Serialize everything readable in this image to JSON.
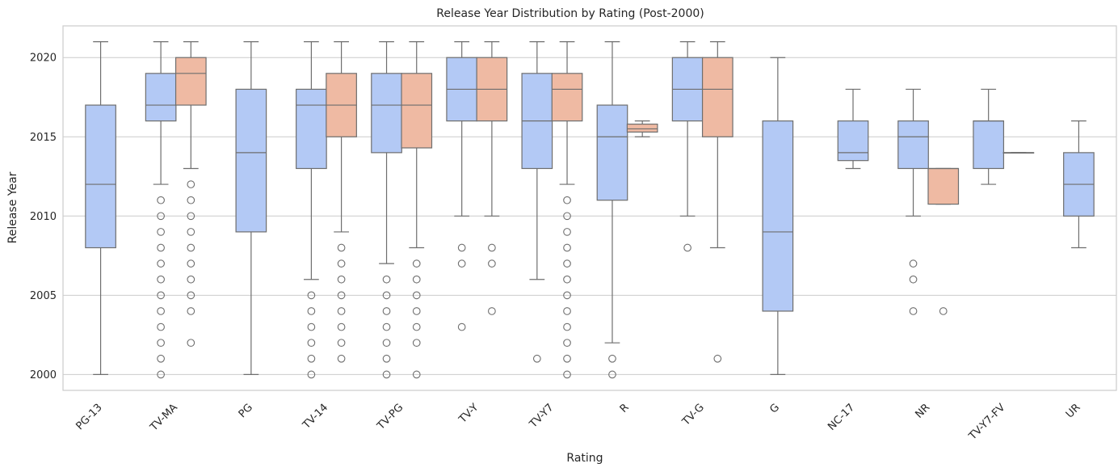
{
  "chart_data": {
    "type": "box",
    "title": "Release Year Distribution by Rating (Post-2000)",
    "xlabel": "Rating",
    "ylabel": "Release Year",
    "ylim": [
      1999,
      2022
    ],
    "yticks": [
      2000,
      2005,
      2010,
      2015,
      2020
    ],
    "grid": true,
    "colors": {
      "first_group": "#b3c9f5",
      "second_group": "#efbaa3",
      "outline": "#6e6e6e",
      "grid": "#cccccc"
    },
    "categories": [
      "PG-13",
      "TV-MA",
      "PG",
      "TV-14",
      "TV-PG",
      "TV-Y",
      "TV-Y7",
      "R",
      "TV-G",
      "G",
      "NC-17",
      "NR",
      "TV-Y7-FV",
      "UR"
    ],
    "boxes": [
      [
        {
          "q1": 2008,
          "median": 2012,
          "q3": 2017,
          "lo": 2000,
          "hi": 2021,
          "fliers": []
        }
      ],
      [
        {
          "q1": 2016,
          "median": 2017,
          "q3": 2019,
          "lo": 2012,
          "hi": 2021,
          "fliers": [
            2000,
            2001,
            2002,
            2003,
            2004,
            2005,
            2006,
            2007,
            2008,
            2009,
            2010,
            2011
          ]
        },
        {
          "q1": 2017,
          "median": 2019,
          "q3": 2020,
          "lo": 2013,
          "hi": 2021,
          "fliers": [
            2002,
            2004,
            2005,
            2006,
            2007,
            2008,
            2009,
            2010,
            2011,
            2012
          ]
        }
      ],
      [
        {
          "q1": 2009,
          "median": 2014,
          "q3": 2018,
          "lo": 2000,
          "hi": 2021,
          "fliers": []
        }
      ],
      [
        {
          "q1": 2013,
          "median": 2017,
          "q3": 2018,
          "lo": 2006,
          "hi": 2021,
          "fliers": [
            2000,
            2001,
            2002,
            2003,
            2004,
            2005
          ]
        },
        {
          "q1": 2015,
          "median": 2017,
          "q3": 2019,
          "lo": 2009,
          "hi": 2021,
          "fliers": [
            2001,
            2002,
            2003,
            2004,
            2005,
            2006,
            2007,
            2008
          ]
        }
      ],
      [
        {
          "q1": 2014,
          "median": 2017,
          "q3": 2019,
          "lo": 2007,
          "hi": 2021,
          "fliers": [
            2000,
            2001,
            2002,
            2003,
            2004,
            2005,
            2006
          ]
        },
        {
          "q1": 2014.3,
          "median": 2017,
          "q3": 2019,
          "lo": 2008,
          "hi": 2021,
          "fliers": [
            2000,
            2002,
            2003,
            2004,
            2005,
            2006,
            2007
          ]
        }
      ],
      [
        {
          "q1": 2016,
          "median": 2018,
          "q3": 2020,
          "lo": 2010,
          "hi": 2021,
          "fliers": [
            2003,
            2007,
            2008
          ]
        },
        {
          "q1": 2016,
          "median": 2018,
          "q3": 2020,
          "lo": 2010,
          "hi": 2021,
          "fliers": [
            2004,
            2007,
            2008
          ]
        }
      ],
      [
        {
          "q1": 2013,
          "median": 2016,
          "q3": 2019,
          "lo": 2006,
          "hi": 2021,
          "fliers": [
            2001
          ]
        },
        {
          "q1": 2016,
          "median": 2018,
          "q3": 2019,
          "lo": 2012,
          "hi": 2021,
          "fliers": [
            2000,
            2001,
            2002,
            2003,
            2004,
            2005,
            2006,
            2007,
            2008,
            2009,
            2010,
            2011
          ]
        }
      ],
      [
        {
          "q1": 2011,
          "median": 2015,
          "q3": 2017,
          "lo": 2002,
          "hi": 2021,
          "fliers": [
            2000,
            2001
          ]
        },
        {
          "q1": 2015.3,
          "median": 2015.5,
          "q3": 2015.8,
          "lo": 2015,
          "hi": 2016,
          "fliers": []
        }
      ],
      [
        {
          "q1": 2016,
          "median": 2018,
          "q3": 2020,
          "lo": 2010,
          "hi": 2021,
          "fliers": [
            2008
          ]
        },
        {
          "q1": 2015,
          "median": 2018,
          "q3": 2020,
          "lo": 2008,
          "hi": 2021,
          "fliers": [
            2001
          ]
        }
      ],
      [
        {
          "q1": 2004,
          "median": 2009,
          "q3": 2016,
          "lo": 2000,
          "hi": 2020,
          "fliers": []
        }
      ],
      [
        {
          "q1": 2013.5,
          "median": 2014,
          "q3": 2016,
          "lo": 2013,
          "hi": 2018,
          "fliers": []
        }
      ],
      [
        {
          "q1": 2013,
          "median": 2015,
          "q3": 2016,
          "lo": 2010,
          "hi": 2018,
          "fliers": [
            2004,
            2006,
            2007
          ]
        },
        {
          "q1": 2010.75,
          "median": 2013,
          "q3": 2013,
          "lo": 2010.75,
          "hi": 2013,
          "fliers": [
            2004
          ]
        }
      ],
      [
        {
          "q1": 2013,
          "median": 2016,
          "q3": 2016,
          "lo": 2012,
          "hi": 2018,
          "fliers": []
        },
        {
          "q1": 2014,
          "median": 2014,
          "q3": 2014,
          "lo": 2014,
          "hi": 2014,
          "fliers": []
        }
      ],
      [
        {
          "q1": 2010,
          "median": 2012,
          "q3": 2014,
          "lo": 2008,
          "hi": 2016,
          "fliers": []
        }
      ]
    ]
  }
}
